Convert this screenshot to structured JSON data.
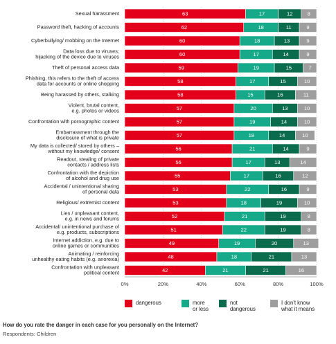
{
  "chart_data": {
    "type": "stacked-barh",
    "categories": [
      [
        "Sexual harassment"
      ],
      [
        "Password theft, hacking of accounts"
      ],
      [
        "Cyberbullying/ mobbing on the Internet"
      ],
      [
        "Data loss due to viruses;",
        "hijacking of the device due to viruses"
      ],
      [
        "Theft of personal access data"
      ],
      [
        "Phishing, this refers to the theft of access",
        "data for accounts or online shopping"
      ],
      [
        "Being harassed by others, stalking"
      ],
      [
        "Violent, brutal content,",
        "e.g. photos or videos"
      ],
      [
        "Confrontation with pornographic content"
      ],
      [
        "Embarrassment through the",
        "disclosure of what is private"
      ],
      [
        "My data is collected/ stored by others –",
        "without my knowledge/ consent"
      ],
      [
        "Readout, stealing of private",
        "contacts / address lists"
      ],
      [
        "Confrontation with the depiction",
        "of alcohol and drug use"
      ],
      [
        "Accidental / unintentional sharing",
        "of personal data"
      ],
      [
        "Religious/ extremist content"
      ],
      [
        "Lies / unpleasant content,",
        "e.g. in news and forums"
      ],
      [
        "Accidental/ unintentional purchase of",
        "e.g. products, subscriptions"
      ],
      [
        "Internet addiction, e.g. due to",
        "online games or communities"
      ],
      [
        "Animating / reinforcing",
        "unhealthy eating habits (e.g. anorexia)"
      ],
      [
        "Confrontation with unpleasant",
        "political content"
      ]
    ],
    "series": [
      {
        "name": "dangerous",
        "color": "#e3001b",
        "values": [
          63,
          62,
          60,
          60,
          59,
          58,
          58,
          57,
          57,
          57,
          56,
          56,
          55,
          53,
          53,
          52,
          51,
          49,
          48,
          42
        ]
      },
      {
        "name": "more or less",
        "color": "#16a98a",
        "values": [
          17,
          18,
          18,
          17,
          19,
          17,
          15,
          20,
          19,
          18,
          21,
          17,
          17,
          22,
          18,
          21,
          22,
          19,
          18,
          21
        ]
      },
      {
        "name": "not dangerous",
        "color": "#0b6b4d",
        "values": [
          12,
          11,
          13,
          14,
          15,
          15,
          16,
          13,
          14,
          14,
          14,
          13,
          16,
          16,
          19,
          19,
          19,
          20,
          21,
          21
        ]
      },
      {
        "name": "I don't know what it means",
        "color": "#9e9e9e",
        "values": [
          8,
          9,
          9,
          9,
          7,
          10,
          11,
          10,
          10,
          10,
          9,
          14,
          12,
          9,
          10,
          8,
          8,
          13,
          13,
          16
        ]
      }
    ],
    "xlim": [
      0,
      100
    ],
    "xticks": [
      {
        "value": 0,
        "label": "0%"
      },
      {
        "value": 20,
        "label": "20%"
      },
      {
        "value": 40,
        "label": "40%"
      },
      {
        "value": 60,
        "label": "60%"
      },
      {
        "value": 80,
        "label": "80%"
      },
      {
        "value": 100,
        "label": "100%"
      }
    ],
    "grid": true,
    "question": "How do you rate the danger in each case for you personally on the Internet?",
    "respondents": "Respondents: Children"
  }
}
